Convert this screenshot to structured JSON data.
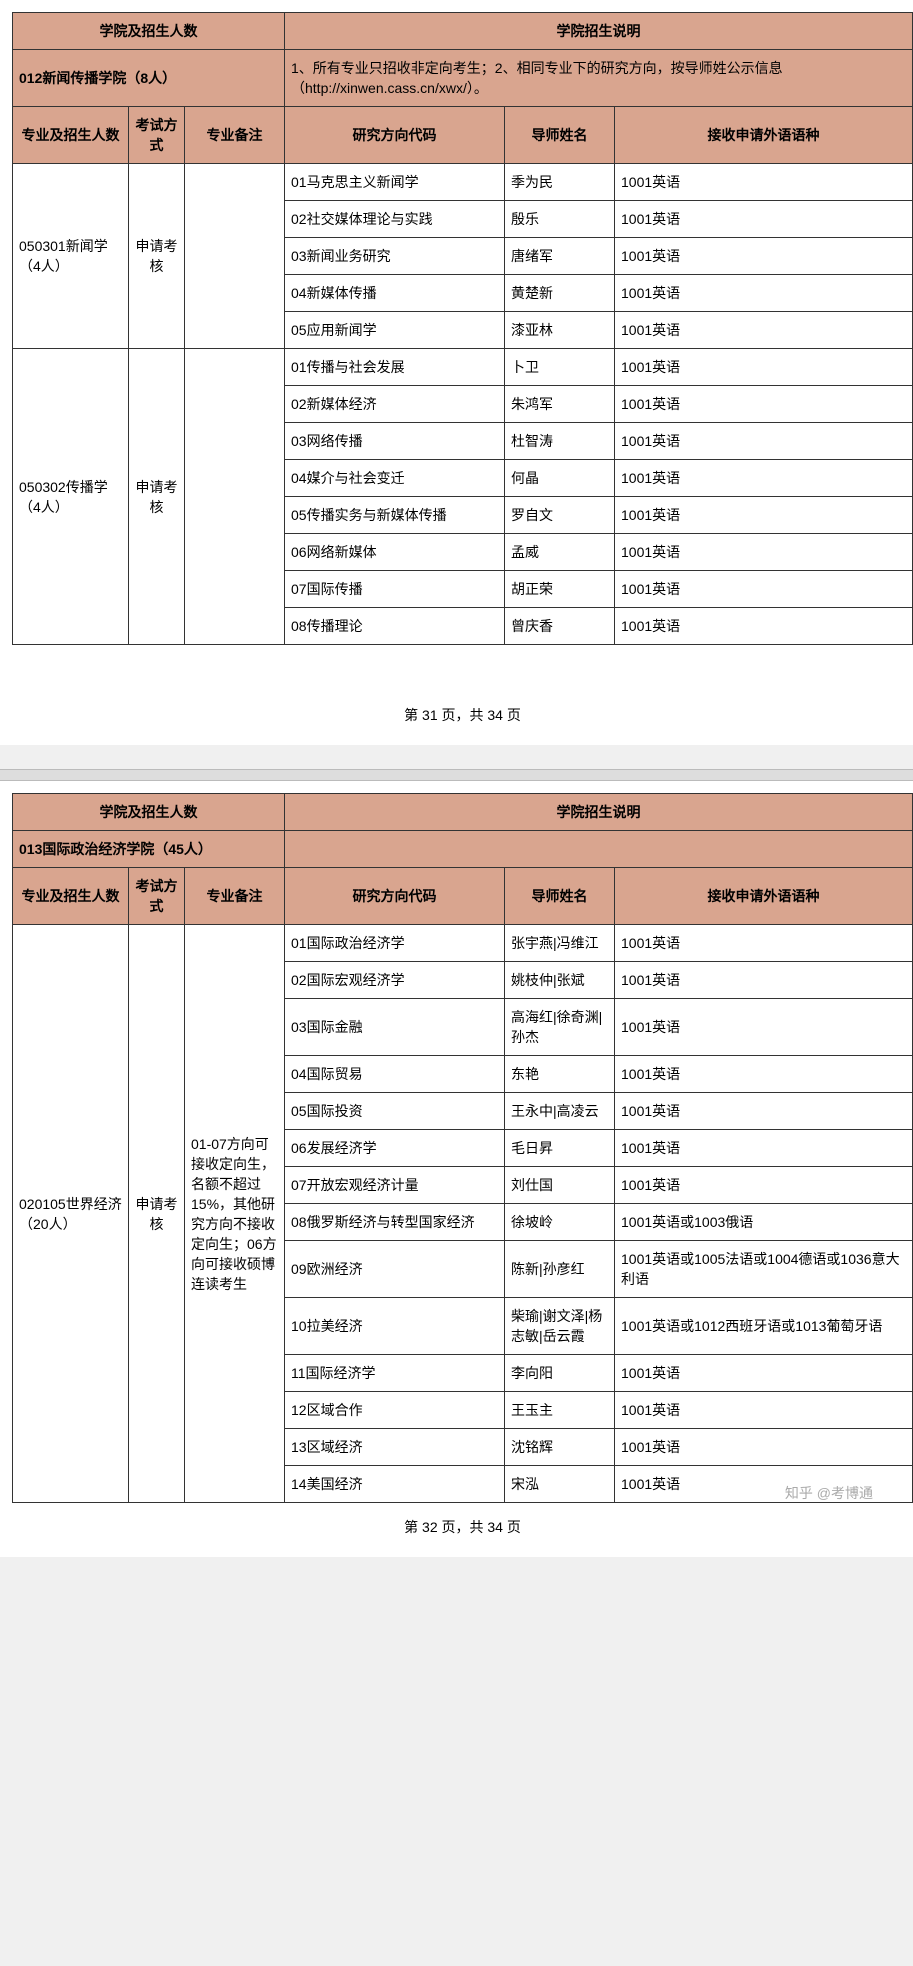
{
  "colors": {
    "header_bg": "#d9a58f",
    "border": "#333333",
    "page_bg": "#ffffff",
    "body_bg": "#f0f0f0"
  },
  "col_widths": {
    "major": 116,
    "exam": 56,
    "note": 100,
    "direction": 220,
    "advisor": 110,
    "language": 220
  },
  "headers": {
    "school_quota": "学院及招生人数",
    "school_desc": "学院招生说明",
    "major_quota": "专业及招生人数",
    "exam_type": "考试方式",
    "major_note": "专业备注",
    "direction_code": "研究方向代码",
    "advisor_name": "导师姓名",
    "language": "接收申请外语语种"
  },
  "page31": {
    "school": "012新闻传播学院（8人）",
    "desc": "1、所有专业只招收非定向考生；2、相同专业下的研究方向，按导师姓公示信息（http://xinwen.cass.cn/xwx/）。",
    "majors": [
      {
        "name": "050301新闻学（4人）",
        "exam": "申请考核",
        "note": "",
        "rows": [
          {
            "dir": "01马克思主义新闻学",
            "adv": "季为民",
            "lang": "1001英语"
          },
          {
            "dir": "02社交媒体理论与实践",
            "adv": "殷乐",
            "lang": "1001英语"
          },
          {
            "dir": "03新闻业务研究",
            "adv": "唐绪军",
            "lang": "1001英语"
          },
          {
            "dir": "04新媒体传播",
            "adv": "黄楚新",
            "lang": "1001英语"
          },
          {
            "dir": "05应用新闻学",
            "adv": "漆亚林",
            "lang": "1001英语"
          }
        ]
      },
      {
        "name": "050302传播学（4人）",
        "exam": "申请考核",
        "note": "",
        "rows": [
          {
            "dir": "01传播与社会发展",
            "adv": "卜卫",
            "lang": "1001英语"
          },
          {
            "dir": "02新媒体经济",
            "adv": "朱鸿军",
            "lang": "1001英语"
          },
          {
            "dir": "03网络传播",
            "adv": "杜智涛",
            "lang": "1001英语"
          },
          {
            "dir": "04媒介与社会变迁",
            "adv": "何晶",
            "lang": "1001英语"
          },
          {
            "dir": "05传播实务与新媒体传播",
            "adv": "罗自文",
            "lang": "1001英语"
          },
          {
            "dir": "06网络新媒体",
            "adv": "孟威",
            "lang": "1001英语"
          },
          {
            "dir": "07国际传播",
            "adv": "胡正荣",
            "lang": "1001英语"
          },
          {
            "dir": "08传播理论",
            "adv": "曾庆香",
            "lang": "1001英语"
          }
        ]
      }
    ],
    "pager": "第 31 页，共 34 页"
  },
  "page32": {
    "school": "013国际政治经济学院（45人）",
    "desc": "",
    "majors": [
      {
        "name": "020105世界经济（20人）",
        "exam": "申请考核",
        "note": "01-07方向可接收定向生，名额不超过15%，其他研究方向不接收定向生；06方向可接收硕博连读考生",
        "rows": [
          {
            "dir": "01国际政治经济学",
            "adv": "张宇燕|冯维江",
            "lang": "1001英语"
          },
          {
            "dir": "02国际宏观经济学",
            "adv": "姚枝仲|张斌",
            "lang": "1001英语"
          },
          {
            "dir": "03国际金融",
            "adv": "高海红|徐奇渊|孙杰",
            "lang": "1001英语"
          },
          {
            "dir": "04国际贸易",
            "adv": "东艳",
            "lang": "1001英语"
          },
          {
            "dir": "05国际投资",
            "adv": "王永中|高凌云",
            "lang": "1001英语"
          },
          {
            "dir": "06发展经济学",
            "adv": "毛日昇",
            "lang": "1001英语"
          },
          {
            "dir": "07开放宏观经济计量",
            "adv": "刘仕国",
            "lang": "1001英语"
          },
          {
            "dir": "08俄罗斯经济与转型国家经济",
            "adv": "徐坡岭",
            "lang": "1001英语或1003俄语"
          },
          {
            "dir": "09欧洲经济",
            "adv": "陈新|孙彦红",
            "lang": "1001英语或1005法语或1004德语或1036意大利语"
          },
          {
            "dir": "10拉美经济",
            "adv": "柴瑜|谢文泽|杨志敏|岳云霞",
            "lang": "1001英语或1012西班牙语或1013葡萄牙语"
          },
          {
            "dir": "11国际经济学",
            "adv": "李向阳",
            "lang": "1001英语"
          },
          {
            "dir": "12区域合作",
            "adv": "王玉主",
            "lang": "1001英语"
          },
          {
            "dir": "13区域经济",
            "adv": "沈铭辉",
            "lang": "1001英语"
          },
          {
            "dir": "14美国经济",
            "adv": "宋泓",
            "lang": "1001英语"
          }
        ]
      }
    ],
    "pager": "第 32 页，共 34 页"
  },
  "watermark": "知乎 @考博通"
}
